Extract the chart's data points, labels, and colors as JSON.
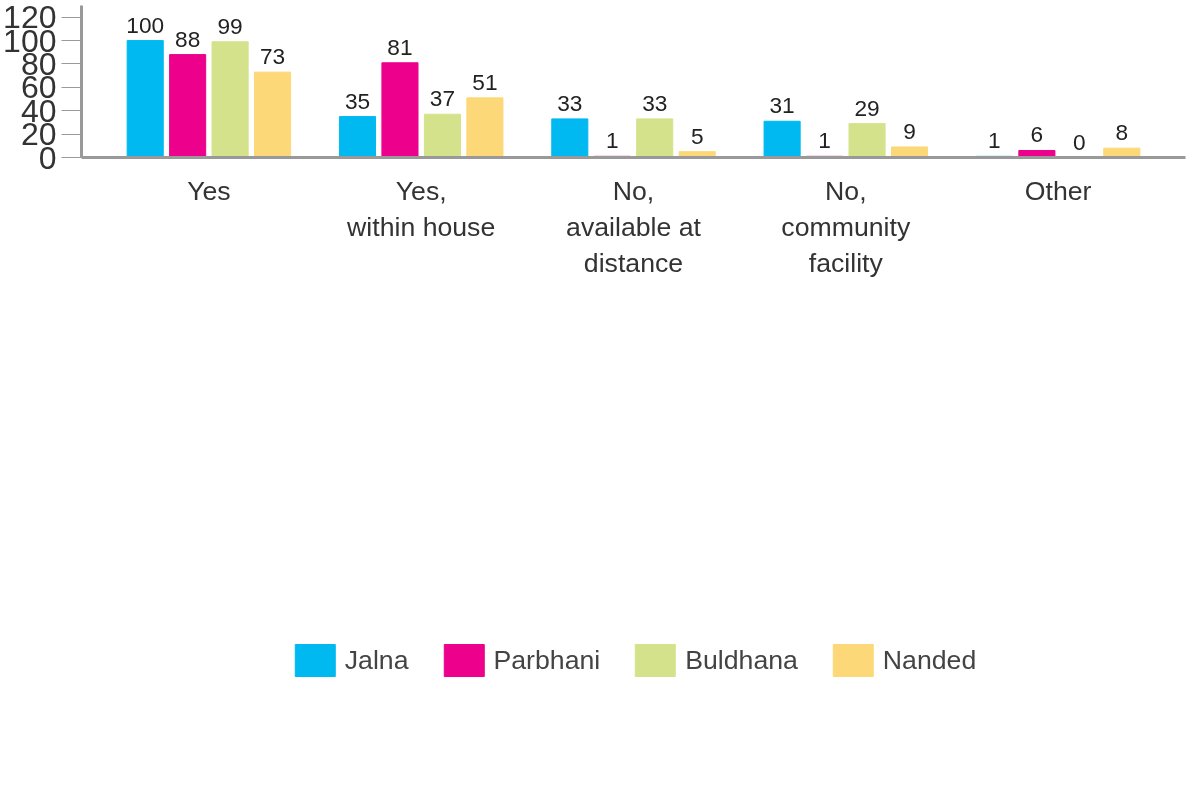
{
  "chart_data": {
    "type": "bar",
    "categories": [
      "Yes",
      "Yes,\nwithin house",
      "No,\navailable at\ndistance",
      "No,\ncommunity\nfacility",
      "Other"
    ],
    "series": [
      {
        "name": "Jalna",
        "color": "#00b9f1",
        "values": [
          100,
          35,
          33,
          31,
          1
        ]
      },
      {
        "name": "Parbhani",
        "color": "#ec008c",
        "values": [
          88,
          81,
          1,
          1,
          6
        ]
      },
      {
        "name": "Buldhana",
        "color": "#d4e38b",
        "values": [
          99,
          37,
          33,
          29,
          0
        ]
      },
      {
        "name": "Nanded",
        "color": "#fdd878",
        "values": [
          73,
          51,
          5,
          9,
          8
        ]
      }
    ],
    "ylim": [
      0,
      130
    ],
    "yticks": [
      0,
      20,
      40,
      60,
      80,
      100,
      120
    ],
    "data_labels": true,
    "grid": false,
    "legend": "bottom"
  }
}
